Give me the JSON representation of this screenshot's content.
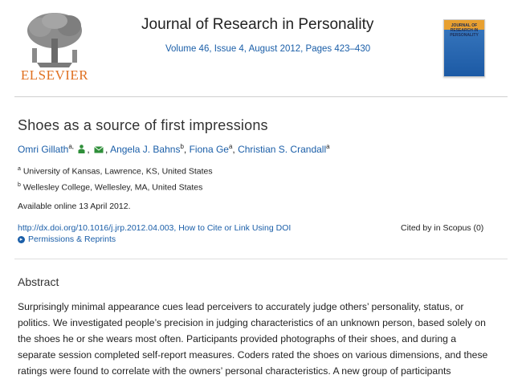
{
  "header": {
    "publisher": "ELSEVIER",
    "journal_title": "Journal of Research in Personality",
    "issue_info": "Volume 46, Issue 4, August 2012, Pages 423–430",
    "cover_text": "JOURNAL OF RESEARCH IN PERSONALITY"
  },
  "article": {
    "title": "Shoes as a source of first impressions",
    "authors": [
      {
        "name": "Omri Gillath",
        "sup": "a,"
      },
      {
        "name": "Angela J. Bahns",
        "sup": "b"
      },
      {
        "name": "Fiona Ge",
        "sup": "a"
      },
      {
        "name": "Christian S. Crandall",
        "sup": "a"
      }
    ],
    "affiliations": [
      {
        "sup": "a",
        "text": "University of Kansas, Lawrence, KS, United States"
      },
      {
        "sup": "b",
        "text": "Wellesley College, Wellesley, MA, United States"
      }
    ],
    "available": "Available online 13 April 2012.",
    "doi_link": "http://dx.doi.org/10.1016/j.jrp.2012.04.003, How to Cite or Link Using DOI",
    "cited_by": "Cited by in Scopus (0)",
    "permissions": "Permissions & Reprints"
  },
  "abstract": {
    "heading": "Abstract",
    "lines": [
      "Surprisingly minimal appearance cues lead perceivers to accurately judge others’ personality, status, or",
      "politics. We investigated people’s precision in judging characteristics of an unknown person, based solely on",
      "the shoes he or she wears most often. Participants provided photographs of their shoes, and during a",
      "separate session completed self-report measures. Coders rated the shoes on various dimensions, and these",
      "ratings were found to correlate with the owners’ personal characteristics. A new group of participants"
    ]
  },
  "colors": {
    "link": "#1a5ea8",
    "publisher_orange": "#e07020",
    "text": "#222222"
  },
  "icons": [
    "elsevier-tree-logo",
    "person-icon",
    "email-icon",
    "permissions-icon"
  ]
}
